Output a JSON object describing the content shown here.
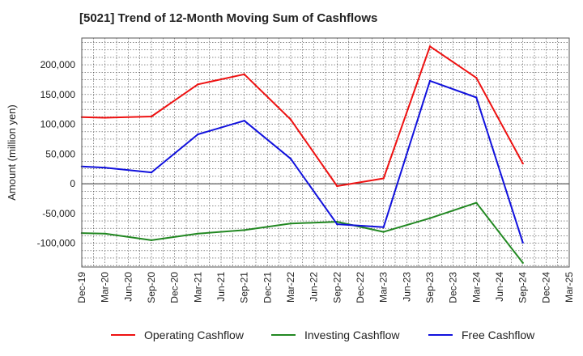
{
  "chart_data": {
    "type": "line",
    "title": "[5021]  Trend of 12-Month Moving Sum of Cashflows",
    "ylabel": "Amount (million yen)",
    "xlabel": "",
    "categories": [
      "Dec-19",
      "Mar-20",
      "Jun-20",
      "Sep-20",
      "Dec-20",
      "Mar-21",
      "Jun-21",
      "Sep-21",
      "Dec-21",
      "Mar-22",
      "Jun-22",
      "Sep-22",
      "Dec-22",
      "Mar-23",
      "Jun-23",
      "Sep-23",
      "Dec-23",
      "Mar-24",
      "Jun-24",
      "Sep-24",
      "Dec-24",
      "Mar-25"
    ],
    "ylim": [
      -140000,
      245000
    ],
    "yticks": [
      -100000,
      -50000,
      0,
      50000,
      100000,
      150000,
      200000
    ],
    "ytick_labels": [
      "-100,000",
      "-50,000",
      "0",
      "50,000",
      "100,000",
      "150,000",
      "200,000"
    ],
    "grid": true,
    "legend_position": "bottom",
    "series": [
      {
        "name": "Operating Cashflow",
        "color": "#ee1111",
        "values": [
          112000,
          111000,
          null,
          113000,
          null,
          167000,
          null,
          184000,
          null,
          108000,
          null,
          -4000,
          null,
          9000,
          null,
          231000,
          null,
          178000,
          null,
          34000,
          null,
          null
        ]
      },
      {
        "name": "Investing Cashflow",
        "color": "#228822",
        "values": [
          -83000,
          -84000,
          null,
          -95000,
          null,
          -84000,
          null,
          -78000,
          null,
          -67000,
          null,
          -64000,
          null,
          -81000,
          null,
          -58000,
          null,
          -32000,
          null,
          -133000,
          null,
          null
        ]
      },
      {
        "name": "Free Cashflow",
        "color": "#1111dd",
        "values": [
          29000,
          27000,
          null,
          19000,
          null,
          83000,
          null,
          106000,
          null,
          42000,
          null,
          -68000,
          null,
          -73000,
          null,
          173000,
          null,
          145000,
          null,
          -99000,
          null,
          null
        ]
      }
    ]
  }
}
